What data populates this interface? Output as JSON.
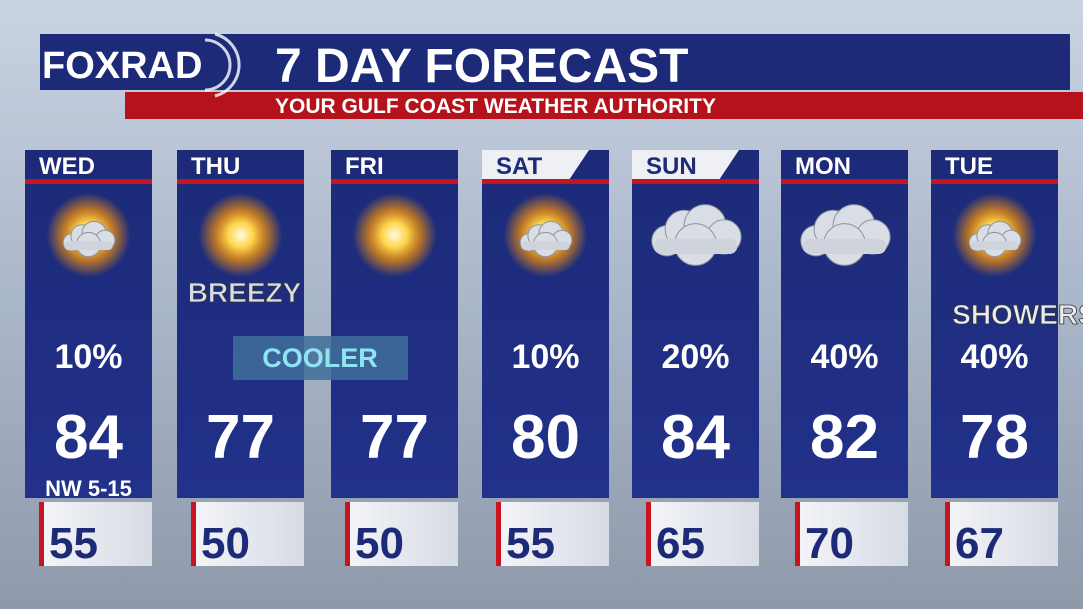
{
  "header": {
    "logo": "FOXRAD",
    "title": "7 DAY FORECAST",
    "subtitle": "YOUR GULF COAST WEATHER AUTHORITY"
  },
  "banner": "COOLER",
  "days": [
    {
      "day": "WED",
      "precip": "10%",
      "high": "84",
      "low": "55",
      "note": "NW 5-15"
    },
    {
      "day": "THU",
      "high": "77",
      "low": "50",
      "note": "BREEZY"
    },
    {
      "day": "FRI",
      "high": "77",
      "low": "50"
    },
    {
      "day": "SAT",
      "precip": "10%",
      "high": "80",
      "low": "55"
    },
    {
      "day": "SUN",
      "precip": "20%",
      "high": "84",
      "low": "65"
    },
    {
      "day": "MON",
      "precip": "40%",
      "high": "82",
      "low": "70"
    },
    {
      "day": "TUE",
      "precip": "40%",
      "high": "78",
      "low": "67",
      "note": "SHOWERS"
    }
  ]
}
